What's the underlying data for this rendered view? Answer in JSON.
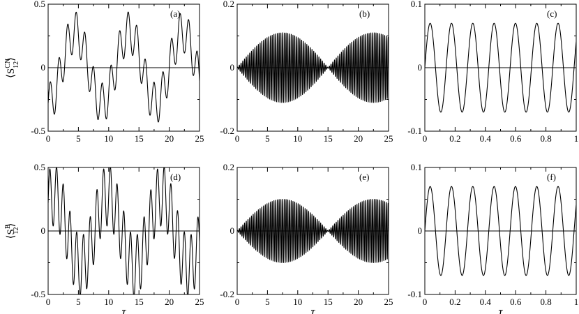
{
  "chart_data": [
    {
      "type": "line",
      "panel_label": "(a)",
      "ylabel": {
        "open": "⟨S",
        "sup": "CN",
        "sub": "12",
        "close": "⟩"
      },
      "xlabel": "",
      "xlim": [
        0,
        25
      ],
      "ylim": [
        -0.5,
        0.5
      ],
      "xticks": [
        0,
        5,
        10,
        15,
        20,
        25
      ],
      "yticks": [
        -0.5,
        0,
        0.5
      ],
      "xtick_labels": [
        "0",
        "5",
        "10",
        "15",
        "20",
        "25"
      ],
      "ytick_labels": [
        "-0.5",
        "0",
        "0.5"
      ],
      "signal": {
        "components": [
          {
            "amp": 0.28,
            "freq": 0.1124,
            "phase": -1.5708
          },
          {
            "amp": 0.16,
            "freq": 0.7,
            "phase": 0.0
          }
        ],
        "offset": 0
      }
    },
    {
      "type": "line",
      "panel_label": "(b)",
      "xlabel": "",
      "xlim": [
        0,
        25
      ],
      "ylim": [
        -0.2,
        0.2
      ],
      "xticks": [
        0,
        5,
        10,
        15,
        20,
        25
      ],
      "yticks": [
        -0.2,
        0,
        0.2
      ],
      "xtick_labels": [
        "0",
        "5",
        "10",
        "15",
        "20",
        "25"
      ],
      "ytick_labels": [
        "-0.2",
        "0",
        "0.2"
      ],
      "signal": {
        "carrier_freq": 3.5,
        "envelope_amp": 0.11,
        "envelope_period": 15
      }
    },
    {
      "type": "line",
      "panel_label": "(c)",
      "xlabel": "",
      "xlim": [
        0,
        1
      ],
      "ylim": [
        -0.1,
        0.1
      ],
      "xticks": [
        0,
        0.2,
        0.4,
        0.6,
        0.8,
        1
      ],
      "yticks": [
        -0.1,
        0,
        0.1
      ],
      "xtick_labels": [
        "0",
        "0.2",
        "0.4",
        "0.6",
        "0.8",
        "1"
      ],
      "ytick_labels": [
        "-0.1",
        "0",
        "0.1"
      ],
      "signal": {
        "components": [
          {
            "amp": 0.07,
            "freq": 7.1,
            "phase": 0
          }
        ],
        "offset": 0
      }
    },
    {
      "type": "line",
      "panel_label": "(d)",
      "ylabel": {
        "open": "⟨S",
        "sup": "B",
        "sub": "12",
        "close": "⟩"
      },
      "xlabel": "τ",
      "xlim": [
        0,
        25
      ],
      "ylim": [
        -0.5,
        0.5
      ],
      "xticks": [
        0,
        5,
        10,
        15,
        20,
        25
      ],
      "yticks": [
        -0.5,
        0,
        0.5
      ],
      "xtick_labels": [
        "0",
        "5",
        "10",
        "15",
        "20",
        "25"
      ],
      "ytick_labels": [
        "-0.5",
        "0",
        "0.5"
      ],
      "signal": {
        "components": [
          {
            "amp": 0.28,
            "freq": 0.1124,
            "phase": 0.9
          },
          {
            "amp": 0.24,
            "freq": 0.9,
            "phase": 0.0
          }
        ],
        "offset": 0
      }
    },
    {
      "type": "line",
      "panel_label": "(e)",
      "xlabel": "τ",
      "xlim": [
        0,
        25
      ],
      "ylim": [
        -0.2,
        0.2
      ],
      "xticks": [
        0,
        5,
        10,
        15,
        20,
        25
      ],
      "yticks": [
        -0.2,
        0,
        0.2
      ],
      "xtick_labels": [
        "0",
        "5",
        "10",
        "15",
        "20",
        "25"
      ],
      "ytick_labels": [
        "-0.2",
        "0",
        "0.2"
      ],
      "signal": {
        "carrier_freq": 3.5,
        "envelope_amp": 0.1,
        "envelope_period": 15
      }
    },
    {
      "type": "line",
      "panel_label": "(f)",
      "xlabel": "τ",
      "xlim": [
        0,
        1
      ],
      "ylim": [
        -0.1,
        0.1
      ],
      "xticks": [
        0,
        0.2,
        0.4,
        0.6,
        0.8,
        1
      ],
      "yticks": [
        -0.1,
        0,
        0.1
      ],
      "xtick_labels": [
        "0",
        "0.2",
        "0.4",
        "0.6",
        "0.8",
        "1"
      ],
      "ytick_labels": [
        "-0.1",
        "0",
        "0.1"
      ],
      "signal": {
        "components": [
          {
            "amp": 0.07,
            "freq": 7.1,
            "phase": 0
          }
        ],
        "offset": 0
      }
    }
  ]
}
